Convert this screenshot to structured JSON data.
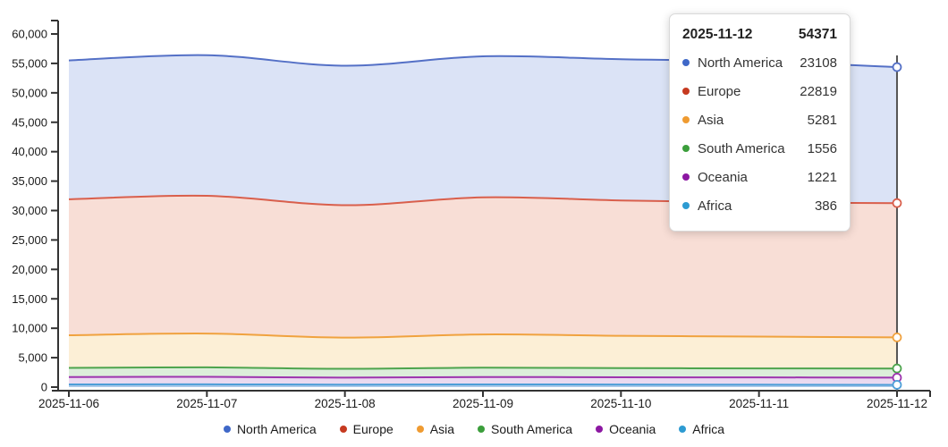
{
  "chart_data": {
    "type": "area",
    "stacked": true,
    "smooth": true,
    "grid": false,
    "title": "",
    "xlabel": "",
    "ylabel": "",
    "ylim": [
      0,
      60000
    ],
    "y_tick_step": 5000,
    "y_tick_labels": [
      "0",
      "5,000",
      "10,000",
      "15,000",
      "20,000",
      "25,000",
      "30,000",
      "35,000",
      "40,000",
      "45,000",
      "50,000",
      "55,000",
      "60,000"
    ],
    "x": [
      "2025-11-06",
      "2025-11-07",
      "2025-11-08",
      "2025-11-09",
      "2025-11-10",
      "2025-11-11",
      "2025-11-12"
    ],
    "stack_order_bottom_to_top": [
      "Africa",
      "Oceania",
      "South America",
      "Asia",
      "Europe",
      "North America"
    ],
    "legend_position": "bottom",
    "series": [
      {
        "name": "North America",
        "dot": "#3f68c8",
        "line": "#5470c6",
        "fill": "#dbe3f6",
        "values": [
          23600,
          23900,
          23700,
          23950,
          23980,
          23920,
          23108
        ]
      },
      {
        "name": "Europe",
        "dot": "#c63a20",
        "line": "#d95f4c",
        "fill": "#f8ded6",
        "values": [
          23100,
          23400,
          22500,
          23300,
          23000,
          22800,
          22819
        ]
      },
      {
        "name": "Asia",
        "dot": "#ef9b31",
        "line": "#f0a23f",
        "fill": "#fcefd6",
        "values": [
          5550,
          5750,
          5300,
          5650,
          5500,
          5400,
          5281
        ]
      },
      {
        "name": "South America",
        "dot": "#3b9e3b",
        "line": "#4da44d",
        "fill": "#dceeda",
        "values": [
          1560,
          1600,
          1500,
          1580,
          1550,
          1530,
          1556
        ]
      },
      {
        "name": "Oceania",
        "dot": "#8c17a2",
        "line": "#9d35ae",
        "fill": "#eadaf0",
        "values": [
          1250,
          1280,
          1190,
          1260,
          1230,
          1240,
          1221
        ]
      },
      {
        "name": "Africa",
        "dot": "#2d9bd2",
        "line": "#4e9ed8",
        "fill": "#abc9e9",
        "values": [
          450,
          470,
          420,
          460,
          440,
          410,
          386
        ]
      }
    ],
    "hover": {
      "x_value": "2025-11-12",
      "total": 54371
    }
  },
  "tooltip": {
    "title": "2025-11-12",
    "total": "54371",
    "rows": [
      {
        "label": "North America",
        "value": "23108",
        "color": "#3f68c8"
      },
      {
        "label": "Europe",
        "value": "22819",
        "color": "#c63a20"
      },
      {
        "label": "Asia",
        "value": "5281",
        "color": "#ef9b31"
      },
      {
        "label": "South America",
        "value": "1556",
        "color": "#3b9e3b"
      },
      {
        "label": "Oceania",
        "value": "1221",
        "color": "#8c17a2"
      },
      {
        "label": "Africa",
        "value": "386",
        "color": "#2d9bd2"
      }
    ]
  },
  "legend": {
    "items": [
      {
        "label": "North America",
        "color": "#3f68c8"
      },
      {
        "label": "Europe",
        "color": "#c63a20"
      },
      {
        "label": "Asia",
        "color": "#ef9b31"
      },
      {
        "label": "South America",
        "color": "#3b9e3b"
      },
      {
        "label": "Oceania",
        "color": "#8c17a2"
      },
      {
        "label": "Africa",
        "color": "#2d9bd2"
      }
    ]
  },
  "colors": {
    "axis": "#333333",
    "crosshair": "#555555",
    "text": "#1a1a1a"
  }
}
